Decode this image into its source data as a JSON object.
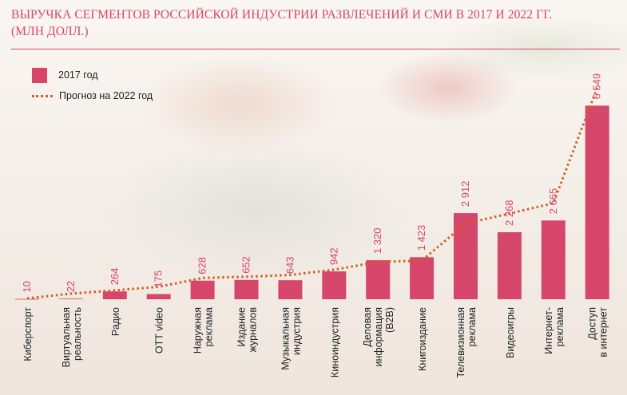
{
  "chart_data": {
    "type": "bar",
    "title": "ВЫРУЧКА СЕГМЕНТОВ РОССИЙСКОЙ ИНДУСТРИИ РАЗВЛЕЧЕНИЙ И СМИ В 2017 И 2022 ГГ. (МЛН ДОЛЛ.)",
    "categories": [
      "Киберспорт",
      "Виртуальная\nреальность",
      "Радио",
      "OTT video",
      "Наружная\nреклама",
      "Издание\nжурналов",
      "Музыкальная\nиндустрия",
      "Киноиндустрия",
      "Деловая\nинформация\n(B2B)",
      "Книгоиздание",
      "Телевизионная\nреклама",
      "Видеоигры",
      "Интернет-\nреклама",
      "Доступ\nв интернет"
    ],
    "series": [
      {
        "name": "2017 год",
        "kind": "bar",
        "color": "#d6466a",
        "values": [
          10,
          22,
          264,
          175,
          628,
          652,
          643,
          942,
          1320,
          1423,
          2912,
          2268,
          2665,
          6549
        ],
        "labels": [
          "10",
          "22",
          "264",
          "175",
          "628",
          "652",
          "643",
          "942",
          "1 320",
          "1 423",
          "2 912",
          "2 268",
          "2 665",
          "6 549"
        ]
      },
      {
        "name": "Прогноз на 2022 год",
        "kind": "dotted-line",
        "color": "#d06020",
        "values": [
          30,
          190,
          300,
          420,
          720,
          760,
          820,
          1000,
          1260,
          1310,
          2560,
          2900,
          3250,
          7150
        ]
      }
    ],
    "ylim": [
      0,
      7800
    ],
    "grid": false,
    "legend_position": "top-left"
  }
}
